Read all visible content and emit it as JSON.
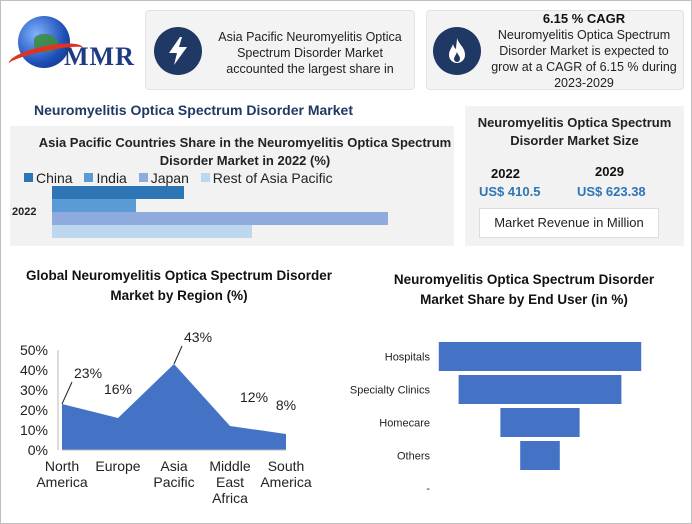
{
  "logo": {
    "text": "MMR"
  },
  "header": {
    "share_text": "Asia Pacific Neuromyelitis Optica Spectrum Disorder Market accounted the largest share in",
    "cagr_title": "6.15 % CAGR",
    "cagr_text": "Neuromyelitis Optica Spectrum Disorder Market is expected to grow at a CAGR of 6.15 % during 2023-2029",
    "icons": [
      "lightning-icon",
      "flame-icon"
    ]
  },
  "main_title": "Neuromyelitis Optica Spectrum Disorder Market",
  "market_size": {
    "title": "Neuromyelitis Optica Spectrum Disorder Market Size",
    "year1": "2022",
    "value1": "US$ 410.5",
    "year2": "2029",
    "value2": "US$ 623.38",
    "unit_label": "Market Revenue in Million"
  },
  "chart_data": [
    {
      "type": "bar",
      "orientation": "horizontal",
      "title": "Asia Pacific Countries Share in the Neuromyelitis Optica Spectrum Disorder  Market in 2022 (%)",
      "categories": [
        "2022"
      ],
      "series": [
        {
          "name": "China",
          "values": [
            33
          ],
          "color": "#2e75b6"
        },
        {
          "name": "India",
          "values": [
            21
          ],
          "color": "#5b9bd5"
        },
        {
          "name": "Japan",
          "values": [
            84
          ],
          "color": "#8faadc"
        },
        {
          "name": "Rest of Asia Pacific",
          "values": [
            50
          ],
          "color": "#bdd7ee"
        }
      ],
      "legend": "top",
      "grid": false
    },
    {
      "type": "area",
      "title": "Global Neuromyelitis Optica Spectrum Disorder Market by Region (%)",
      "categories": [
        "North America",
        "Europe",
        "Asia Pacific",
        "Middle East Africa",
        "South America"
      ],
      "values": [
        23,
        16,
        43,
        12,
        8
      ],
      "data_labels": [
        "23%",
        "16%",
        "43%",
        "12%",
        "8%"
      ],
      "y_ticks": [
        "0%",
        "10%",
        "20%",
        "30%",
        "40%",
        "50%"
      ],
      "ylim": [
        0,
        50
      ],
      "color": "#4472c4",
      "grid": false
    },
    {
      "type": "bar",
      "orientation": "horizontal-funnel",
      "title": "Neuromyelitis Optica Spectrum Disorder Market Share by End User (in %)",
      "categories": [
        "Hospitals",
        "Specialty Clinics",
        "Homecare",
        "Others"
      ],
      "values": [
        46,
        37,
        18,
        9
      ],
      "bottom_tick": "-",
      "color": "#4472c4",
      "grid": false
    }
  ]
}
